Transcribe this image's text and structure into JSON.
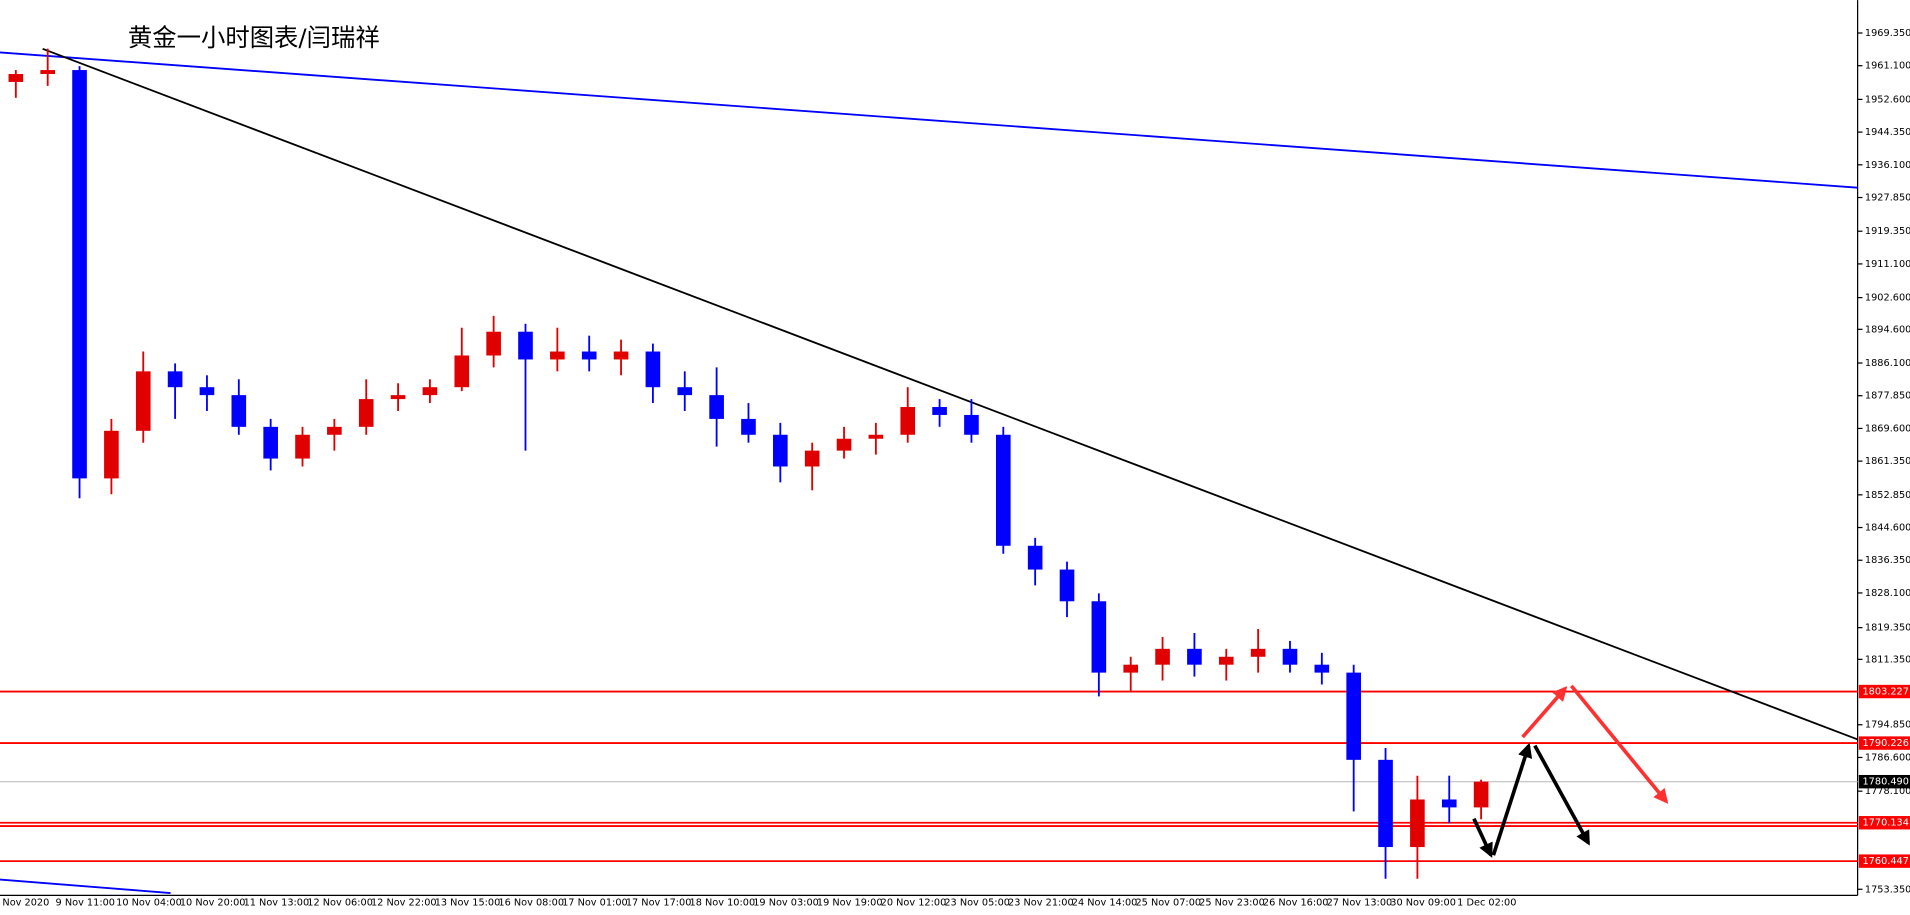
{
  "chart_data": {
    "type": "candlestick",
    "title": "黄金一小时图表/闫瑞祥",
    "up_color": "#e00000",
    "down_color": "#0000ff",
    "candles": {
      "open": [
        1957,
        1959,
        1960,
        1857,
        1869,
        1884,
        1880,
        1878,
        1870,
        1862,
        1868,
        1870,
        1877,
        1878,
        1880,
        1888,
        1894,
        1887,
        1889,
        1887,
        1889,
        1880,
        1878,
        1872,
        1868,
        1860,
        1864,
        1867,
        1868,
        1875,
        1873,
        1868,
        1840,
        1834,
        1826,
        1808,
        1810,
        1814,
        1810,
        1812,
        1814,
        1810,
        1808,
        1786,
        1764,
        1776,
        1774
      ],
      "high": [
        1960,
        1965.4,
        1961,
        1872,
        1889,
        1886,
        1883,
        1882,
        1872,
        1870,
        1872,
        1882,
        1881,
        1882,
        1895,
        1898,
        1896,
        1895,
        1893,
        1892,
        1891,
        1884,
        1885,
        1876,
        1871,
        1866,
        1870,
        1871,
        1880,
        1877,
        1877,
        1870,
        1842,
        1836,
        1828,
        1812,
        1817,
        1818,
        1814,
        1819,
        1816,
        1813,
        1810,
        1789,
        1782,
        1782,
        1781
      ],
      "low": [
        1953,
        1956,
        1852,
        1853,
        1866,
        1872,
        1874,
        1868,
        1859,
        1860,
        1864,
        1868,
        1874,
        1876,
        1879,
        1885,
        1864,
        1884,
        1884,
        1883,
        1876,
        1874,
        1865,
        1866,
        1856,
        1854,
        1862,
        1863,
        1866,
        1870,
        1866,
        1838,
        1830,
        1822,
        1802,
        1803,
        1806,
        1807,
        1806,
        1808,
        1808,
        1805,
        1773,
        1756,
        1756,
        1770,
        1771
      ],
      "close": [
        1959,
        1960,
        1857,
        1869,
        1884,
        1880,
        1878,
        1870,
        1862,
        1868,
        1870,
        1877,
        1878,
        1880,
        1888,
        1894,
        1887,
        1889,
        1887,
        1889,
        1880,
        1878,
        1872,
        1868,
        1860,
        1864,
        1867,
        1868,
        1875,
        1873,
        1868,
        1840,
        1834,
        1826,
        1808,
        1810,
        1814,
        1810,
        1812,
        1814,
        1810,
        1808,
        1786,
        1764,
        1776,
        1774,
        1780.49
      ]
    },
    "xtick_labels": [
      "Nov 2020",
      "9 Nov 11:00",
      "10 Nov 04:00",
      "10 Nov 20:00",
      "11 Nov 13:00",
      "12 Nov 06:00",
      "12 Nov 22:00",
      "13 Nov 15:00",
      "16 Nov 08:00",
      "17 Nov 01:00",
      "17 Nov 17:00",
      "18 Nov 10:00",
      "19 Nov 03:00",
      "19 Nov 19:00",
      "20 Nov 12:00",
      "23 Nov 05:00",
      "23 Nov 21:00",
      "24 Nov 14:00",
      "25 Nov 07:00",
      "25 Nov 23:00",
      "26 Nov 16:00",
      "27 Nov 13:00",
      "30 Nov 09:00",
      "1 Dec 02:00"
    ],
    "ylim": [
      1751.8,
      1977.65
    ],
    "yticks": [
      {
        "value": 1969.35,
        "label": "1969.350"
      },
      {
        "value": 1961.1,
        "label": "1961.100"
      },
      {
        "value": 1952.6,
        "label": "1952.600"
      },
      {
        "value": 1944.35,
        "label": "1944.350"
      },
      {
        "value": 1936.1,
        "label": "1936.100"
      },
      {
        "value": 1927.85,
        "label": "1927.850"
      },
      {
        "value": 1919.35,
        "label": "1919.350"
      },
      {
        "value": 1911.1,
        "label": "1911.100"
      },
      {
        "value": 1902.6,
        "label": "1902.600"
      },
      {
        "value": 1894.6,
        "label": "1894.600"
      },
      {
        "value": 1886.1,
        "label": "1886.100"
      },
      {
        "value": 1877.85,
        "label": "1877.850"
      },
      {
        "value": 1869.6,
        "label": "1869.600"
      },
      {
        "value": 1861.35,
        "label": "1861.350"
      },
      {
        "value": 1852.85,
        "label": "1852.850"
      },
      {
        "value": 1844.6,
        "label": "1844.600"
      },
      {
        "value": 1836.35,
        "label": "1836.350"
      },
      {
        "value": 1828.1,
        "label": "1828.100"
      },
      {
        "value": 1819.35,
        "label": "1819.350"
      },
      {
        "value": 1811.35,
        "label": "1811.350"
      },
      {
        "value": 1794.85,
        "label": "1794.850"
      },
      {
        "value": 1786.6,
        "label": "1786.600"
      },
      {
        "value": 1778.1,
        "label": "1778.100"
      },
      {
        "value": 1753.35,
        "label": "1753.350"
      }
    ],
    "levels": [
      {
        "value": 1803.227,
        "label": "1803.227",
        "color": "#ff0000"
      },
      {
        "value": 1790.226,
        "label": "1790.226",
        "color": "#ff0000"
      },
      {
        "value": 1780.49,
        "label": "1780.490",
        "color": "#c0c0c0"
      },
      {
        "value": 1770.134,
        "label": "1770.134",
        "color": "#ff0000"
      },
      {
        "value": 1769.3,
        "color": "#ff0000"
      },
      {
        "value": 1760.447,
        "label": "1760.447",
        "color": "#ff0000"
      }
    ],
    "trendlines": [
      {
        "color": "#0000ff",
        "start": 1964.44,
        "end": 1930.33
      },
      {
        "color": "#000000",
        "start": 1965.36,
        "end": 1791.15
      },
      {
        "color": "#0000ff",
        "start": 1755.8,
        "end": 1752.4
      }
    ]
  }
}
